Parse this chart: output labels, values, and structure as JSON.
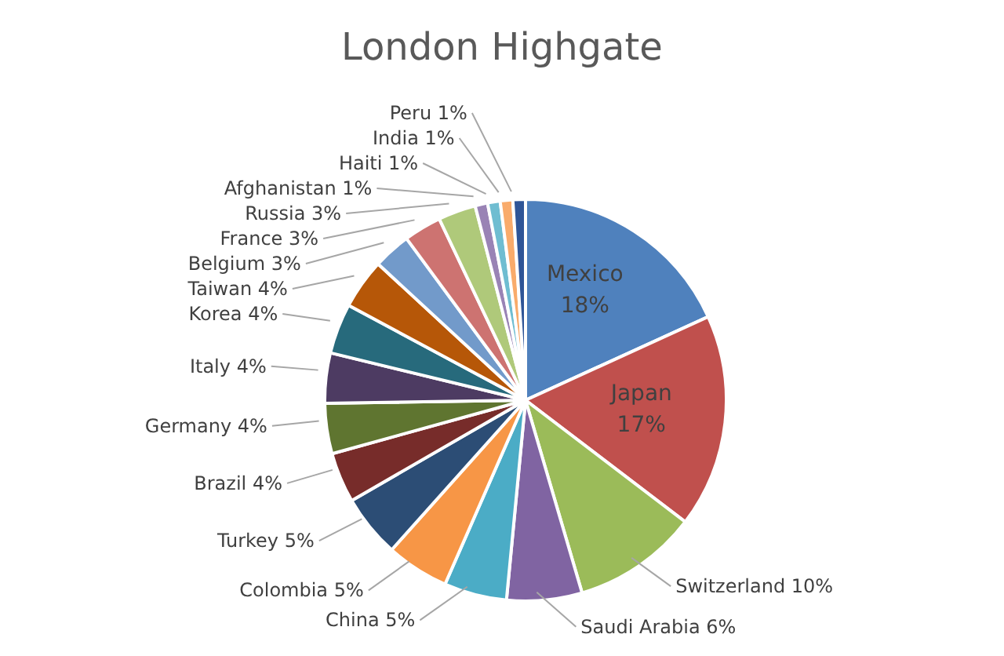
{
  "chart_data": {
    "type": "pie",
    "title": "London Highgate",
    "categories": [
      "Mexico",
      "Japan",
      "Switzerland",
      "Saudi Arabia",
      "China",
      "Colombia",
      "Turkey",
      "Brazil",
      "Germany",
      "Italy",
      "Korea",
      "Taiwan",
      "Belgium",
      "France",
      "Russia",
      "Afghanistan",
      "Haiti",
      "India",
      "Peru"
    ],
    "values": [
      18,
      17,
      10,
      6,
      5,
      5,
      5,
      4,
      4,
      4,
      4,
      4,
      3,
      3,
      3,
      1,
      1,
      1,
      1
    ],
    "colors": [
      "#4f81bd",
      "#c0504d",
      "#9bbb59",
      "#8064a2",
      "#4bacc6",
      "#f79646",
      "#2c4d75",
      "#772c2a",
      "#5f7530",
      "#4d3b62",
      "#276a7c",
      "#b65708",
      "#729aca",
      "#cd7371",
      "#afc97a",
      "#9983b5",
      "#6fbdd1",
      "#f9ab6b",
      "#2f5597"
    ],
    "value_labels": [
      "18%",
      "17%",
      "10%",
      "6%",
      "5%",
      "5%",
      "5%",
      "4%",
      "4%",
      "4%",
      "4%",
      "4%",
      "3%",
      "3%",
      "3%",
      "1%",
      "1%",
      "1%",
      "1%"
    ]
  }
}
